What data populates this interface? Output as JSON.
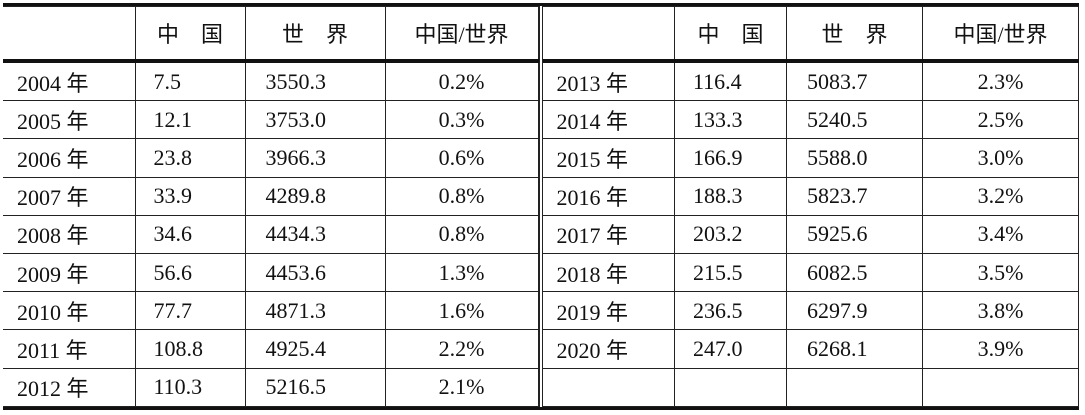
{
  "headers": [
    "",
    "中　国",
    "世　界",
    "中国/世界"
  ],
  "left_rows": [
    [
      "2004 年",
      "7.5",
      "3550.3",
      "0.2%"
    ],
    [
      "2005 年",
      "12.1",
      "3753.0",
      "0.3%"
    ],
    [
      "2006 年",
      "23.8",
      "3966.3",
      "0.6%"
    ],
    [
      "2007 年",
      "33.9",
      "4289.8",
      "0.8%"
    ],
    [
      "2008 年",
      "34.6",
      "4434.3",
      "0.8%"
    ],
    [
      "2009 年",
      "56.6",
      "4453.6",
      "1.3%"
    ],
    [
      "2010 年",
      "77.7",
      "4871.3",
      "1.6%"
    ],
    [
      "2011 年",
      "108.8",
      "4925.4",
      "2.2%"
    ],
    [
      "2012 年",
      "110.3",
      "5216.5",
      "2.1%"
    ]
  ],
  "right_rows": [
    [
      "2013 年",
      "116.4",
      "5083.7",
      "2.3%"
    ],
    [
      "2014 年",
      "133.3",
      "5240.5",
      "2.5%"
    ],
    [
      "2015 年",
      "166.9",
      "5588.0",
      "3.0%"
    ],
    [
      "2016 年",
      "188.3",
      "5823.7",
      "3.2%"
    ],
    [
      "2017 年",
      "203.2",
      "5925.6",
      "3.4%"
    ],
    [
      "2018 年",
      "215.5",
      "6082.5",
      "3.5%"
    ],
    [
      "2019 年",
      "236.5",
      "6297.9",
      "3.8%"
    ],
    [
      "2020 年",
      "247.0",
      "6268.1",
      "3.9%"
    ],
    [
      "",
      "",
      "",
      ""
    ]
  ]
}
